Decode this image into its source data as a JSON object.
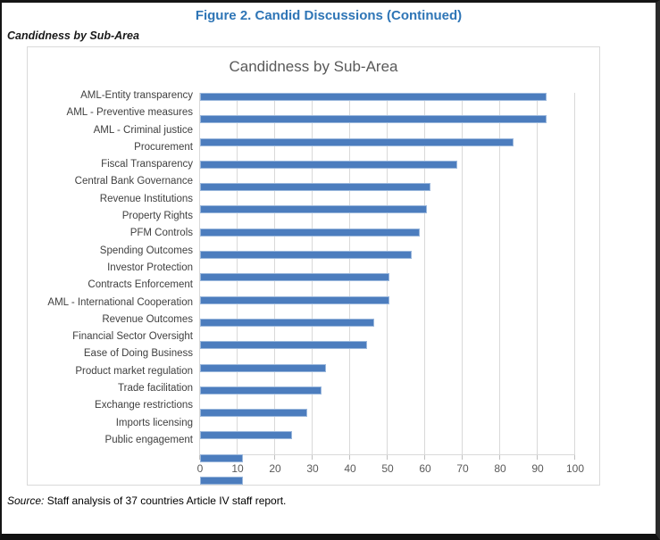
{
  "page": {
    "figure_title": "Figure 2. Candid Discussions (Continued)",
    "subtitle": "Candidness by Sub-Area",
    "source_label": "Source:",
    "source_text": " Staff analysis of 37 countries Article IV staff report."
  },
  "colors": {
    "figure_title": "#2e75b6",
    "chart_text": "#595959",
    "bar_fill": "#4c7dbe",
    "bar_border": "#9ab7dc",
    "grid": "#d9d9d9"
  },
  "chart_data": {
    "type": "bar",
    "orientation": "horizontal",
    "title": "Candidness by Sub-Area",
    "categories": [
      "AML-Entity transparency",
      "AML - Preventive measures",
      "AML - Criminal justice",
      "Procurement",
      "Fiscal Transparency",
      "Central Bank Governance",
      "Revenue Institutions",
      "Property Rights",
      "PFM Controls",
      "Spending Outcomes",
      "Investor Protection",
      "Contracts Enforcement",
      "AML - International Cooperation",
      "Revenue Outcomes",
      "Financial Sector Oversight",
      "Ease of Doing Business",
      "Product market regulation",
      "Trade facilitation",
      "Exchange restrictions",
      "Imports licensing",
      "Public engagement"
    ],
    "values": [
      92,
      92,
      83,
      68,
      61,
      60,
      58,
      56,
      50,
      50,
      46,
      44,
      33,
      32,
      28,
      24,
      11,
      11,
      0,
      0,
      0
    ],
    "xlabel": "",
    "ylabel": "",
    "xlim": [
      0,
      100
    ],
    "xticks": [
      0,
      10,
      20,
      30,
      40,
      50,
      60,
      70,
      80,
      90,
      100
    ],
    "grid": "vertical",
    "legend": "none"
  }
}
